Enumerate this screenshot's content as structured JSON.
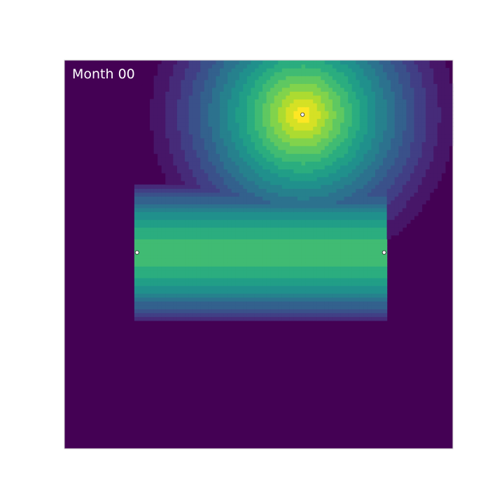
{
  "frame_label": "Month 00",
  "colors": {
    "background": "#440154",
    "frame": "#cccccc",
    "marker_fill": "#ffffff",
    "marker_stroke": "#222222"
  },
  "chart_data": {
    "type": "heatmap",
    "colormap": "viridis",
    "value_range": [
      0,
      1
    ],
    "grid_shape": [
      100,
      100
    ],
    "x_range": [
      0,
      1
    ],
    "y_range": [
      0,
      1
    ],
    "levels": 16,
    "background_value": 0,
    "sources": [
      {
        "id": "radial-source",
        "kind": "radial",
        "center": [
          0.613,
          0.86
        ],
        "peak": 1.0,
        "radius": 0.39
      },
      {
        "id": "band-source",
        "kind": "band",
        "x_extent": [
          0.182,
          0.826
        ],
        "y_extent": [
          0.33,
          0.682
        ],
        "center_y": 0.505,
        "peak": 0.68,
        "half_width": 0.17
      }
    ],
    "markers": [
      {
        "id": "marker-radial-center",
        "x": 0.613,
        "y": 0.86
      },
      {
        "id": "marker-band-left",
        "x": 0.187,
        "y": 0.505
      },
      {
        "id": "marker-band-right",
        "x": 0.823,
        "y": 0.505
      }
    ],
    "axes_visible": false,
    "grid": false
  }
}
